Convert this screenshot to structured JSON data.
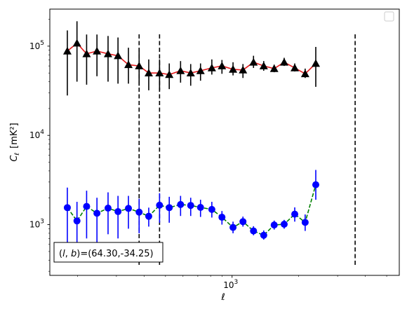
{
  "chart_data": {
    "type": "scatter",
    "title": "",
    "xlabel": "ℓ",
    "ylabel": "C",
    "ylabel_sub": "ℓ",
    "ylabel_unit": "[mK²]",
    "xscale": "log",
    "yscale": "log",
    "xlim": [
      150,
      5700
    ],
    "ylim": [
      270,
      260000
    ],
    "x_tick_labels": [
      {
        "value": 1000,
        "base": "10",
        "exp": "3"
      }
    ],
    "y_tick_labels": [
      {
        "value": 1000,
        "base": "10",
        "exp": "3"
      },
      {
        "value": 10000,
        "base": "10",
        "exp": "4"
      },
      {
        "value": 100000,
        "base": "10",
        "exp": "5"
      }
    ],
    "legend": {
      "placement": "top-right",
      "entries": []
    },
    "annotation": "(l, b)=(64.30,-34.25)",
    "annotation_parts": {
      "l": "l",
      "b": "b",
      "values": "=(64.30,-34.25)"
    },
    "vlines_x": [
      380,
      470,
      3600
    ],
    "series": [
      {
        "marker": "triangle",
        "marker_color": "#000000",
        "line_color": "#e41a1c",
        "line_style": "solid",
        "points": [
          {
            "x": 180,
            "y": 88000,
            "lo": 28000,
            "hi": 150000
          },
          {
            "x": 199,
            "y": 108000,
            "lo": 40000,
            "hi": 190000
          },
          {
            "x": 220,
            "y": 82000,
            "lo": 37000,
            "hi": 135000
          },
          {
            "x": 245,
            "y": 88000,
            "lo": 46000,
            "hi": 135000
          },
          {
            "x": 275,
            "y": 82000,
            "lo": 40000,
            "hi": 130000
          },
          {
            "x": 305,
            "y": 78000,
            "lo": 38000,
            "hi": 125000
          },
          {
            "x": 340,
            "y": 62000,
            "lo": 38000,
            "hi": 96000
          },
          {
            "x": 380,
            "y": 60000,
            "lo": 36000,
            "hi": 95000
          },
          {
            "x": 420,
            "y": 50000,
            "lo": 32000,
            "hi": 71000
          },
          {
            "x": 470,
            "y": 50000,
            "lo": 32000,
            "hi": 71000
          },
          {
            "x": 520,
            "y": 48000,
            "lo": 33000,
            "hi": 64000
          },
          {
            "x": 585,
            "y": 53000,
            "lo": 39000,
            "hi": 68000
          },
          {
            "x": 650,
            "y": 50000,
            "lo": 36000,
            "hi": 63000
          },
          {
            "x": 720,
            "y": 53000,
            "lo": 41000,
            "hi": 64000
          },
          {
            "x": 810,
            "y": 57000,
            "lo": 48000,
            "hi": 71000
          },
          {
            "x": 900,
            "y": 60000,
            "lo": 49000,
            "hi": 70000
          },
          {
            "x": 1010,
            "y": 55000,
            "lo": 47000,
            "hi": 66000
          },
          {
            "x": 1120,
            "y": 54000,
            "lo": 44000,
            "hi": 63000
          },
          {
            "x": 1250,
            "y": 66000,
            "lo": 57000,
            "hi": 78000
          },
          {
            "x": 1390,
            "y": 60000,
            "lo": 53000,
            "hi": 68000
          },
          {
            "x": 1550,
            "y": 56000,
            "lo": 51000,
            "hi": 62000
          },
          {
            "x": 1720,
            "y": 66000,
            "lo": 60000,
            "hi": 74000
          },
          {
            "x": 1920,
            "y": 57000,
            "lo": 52000,
            "hi": 64000
          },
          {
            "x": 2140,
            "y": 49000,
            "lo": 44000,
            "hi": 56000
          },
          {
            "x": 2390,
            "y": 64000,
            "lo": 35000,
            "hi": 98000
          }
        ]
      },
      {
        "marker": "circle",
        "marker_color": "#0000ff",
        "line_color": "#008000",
        "line_style": "dashed",
        "points": [
          {
            "x": 180,
            "y": 1550,
            "lo": 450,
            "hi": 2600
          },
          {
            "x": 199,
            "y": 1100,
            "lo": 410,
            "hi": 1800
          },
          {
            "x": 220,
            "y": 1600,
            "lo": 700,
            "hi": 2400
          },
          {
            "x": 245,
            "y": 1340,
            "lo": 620,
            "hi": 2000
          },
          {
            "x": 275,
            "y": 1530,
            "lo": 780,
            "hi": 2300
          },
          {
            "x": 305,
            "y": 1400,
            "lo": 700,
            "hi": 2100
          },
          {
            "x": 340,
            "y": 1520,
            "lo": 900,
            "hi": 2100
          },
          {
            "x": 380,
            "y": 1380,
            "lo": 800,
            "hi": 1950
          },
          {
            "x": 420,
            "y": 1240,
            "lo": 950,
            "hi": 1550
          },
          {
            "x": 470,
            "y": 1650,
            "lo": 1050,
            "hi": 2250
          },
          {
            "x": 520,
            "y": 1550,
            "lo": 1050,
            "hi": 2050
          },
          {
            "x": 585,
            "y": 1680,
            "lo": 1250,
            "hi": 2100
          },
          {
            "x": 650,
            "y": 1640,
            "lo": 1250,
            "hi": 2000
          },
          {
            "x": 720,
            "y": 1560,
            "lo": 1220,
            "hi": 1900
          },
          {
            "x": 810,
            "y": 1480,
            "lo": 1200,
            "hi": 1800
          },
          {
            "x": 900,
            "y": 1210,
            "lo": 1000,
            "hi": 1420
          },
          {
            "x": 1010,
            "y": 930,
            "lo": 800,
            "hi": 1080
          },
          {
            "x": 1120,
            "y": 1080,
            "lo": 950,
            "hi": 1230
          },
          {
            "x": 1250,
            "y": 850,
            "lo": 760,
            "hi": 960
          },
          {
            "x": 1390,
            "y": 760,
            "lo": 680,
            "hi": 860
          },
          {
            "x": 1550,
            "y": 990,
            "lo": 880,
            "hi": 1110
          },
          {
            "x": 1720,
            "y": 1010,
            "lo": 900,
            "hi": 1130
          },
          {
            "x": 1920,
            "y": 1310,
            "lo": 1080,
            "hi": 1560
          },
          {
            "x": 2140,
            "y": 1060,
            "lo": 850,
            "hi": 1300
          },
          {
            "x": 2390,
            "y": 2800,
            "lo": 1900,
            "hi": 4100
          }
        ]
      }
    ]
  }
}
